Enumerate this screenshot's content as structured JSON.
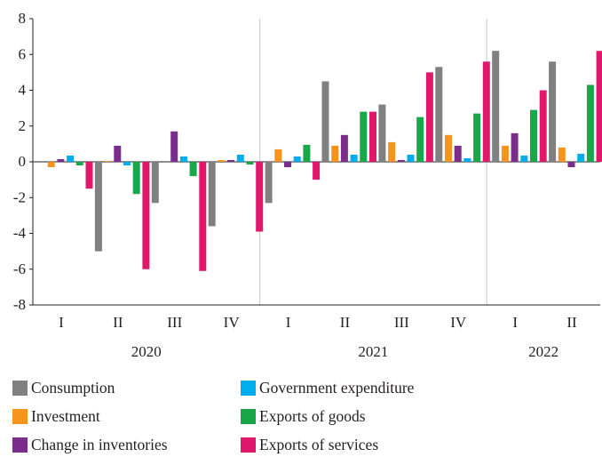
{
  "chart_data": {
    "type": "bar",
    "title": "",
    "xlabel": "",
    "ylabel": "",
    "ylim": [
      -8,
      8
    ],
    "yticks": [
      -8,
      -6,
      -4,
      -2,
      0,
      2,
      4,
      6,
      8
    ],
    "ytick_labels": [
      "-8",
      "-6",
      "-4",
      "-2",
      "0",
      "2",
      "4",
      "6",
      "8"
    ],
    "grid": false,
    "legend_position": "bottom",
    "categories": [
      "I",
      "II",
      "III",
      "IV",
      "I",
      "II",
      "III",
      "IV",
      "I",
      "II"
    ],
    "year_groups": [
      {
        "label": "2020",
        "start": 0,
        "count": 4
      },
      {
        "label": "2021",
        "start": 4,
        "count": 4
      },
      {
        "label": "2022",
        "start": 8,
        "count": 2
      }
    ],
    "series": [
      {
        "name": "Consumption",
        "color": "#808080",
        "values": [
          0.0,
          -5.0,
          -2.3,
          -3.6,
          -2.3,
          4.5,
          3.2,
          5.3,
          6.2,
          5.6
        ]
      },
      {
        "name": "Investment",
        "color": "#f7941d",
        "values": [
          -0.3,
          0.05,
          0.0,
          0.1,
          0.7,
          0.9,
          1.1,
          1.5,
          0.9,
          0.8
        ]
      },
      {
        "name": "Change in inventories",
        "color": "#7b2d8e",
        "values": [
          0.15,
          0.9,
          1.7,
          0.1,
          -0.3,
          1.5,
          0.1,
          0.9,
          1.6,
          -0.3
        ]
      },
      {
        "name": "Government expenditure",
        "color": "#00aeef",
        "values": [
          0.35,
          -0.2,
          0.3,
          0.4,
          0.3,
          0.4,
          0.4,
          0.2,
          0.35,
          0.45
        ]
      },
      {
        "name": "Exports of goods",
        "color": "#1aa64a",
        "values": [
          -0.2,
          -1.8,
          -0.8,
          -0.15,
          0.95,
          2.8,
          2.5,
          2.7,
          2.9,
          4.3
        ]
      },
      {
        "name": "Exports of services",
        "color": "#e0186b",
        "values": [
          -1.5,
          -6.0,
          -6.1,
          -3.9,
          -1.0,
          2.8,
          5.0,
          5.6,
          4.0,
          6.2
        ]
      }
    ]
  }
}
